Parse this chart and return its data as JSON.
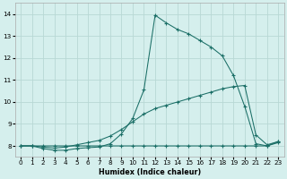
{
  "xlabel": "Humidex (Indice chaleur)",
  "background_color": "#d5efed",
  "grid_color": "#b8d8d5",
  "line_color": "#1a6e66",
  "xlim": [
    -0.5,
    23.5
  ],
  "ylim": [
    7.5,
    14.5
  ],
  "xticks": [
    0,
    1,
    2,
    3,
    4,
    5,
    6,
    7,
    8,
    9,
    10,
    11,
    12,
    13,
    14,
    15,
    16,
    17,
    18,
    19,
    20,
    21,
    22,
    23
  ],
  "yticks": [
    8,
    9,
    10,
    11,
    12,
    13,
    14
  ],
  "line1_x": [
    0,
    1,
    2,
    3,
    4,
    5,
    6,
    7,
    8,
    9,
    10,
    11,
    12,
    13,
    14,
    15,
    16,
    17,
    18,
    19,
    20,
    21,
    22,
    23
  ],
  "line1_y": [
    8.0,
    8.0,
    7.88,
    7.8,
    7.8,
    7.88,
    7.92,
    7.95,
    8.1,
    8.55,
    9.25,
    10.55,
    13.95,
    13.6,
    13.3,
    13.1,
    12.8,
    12.5,
    12.1,
    11.2,
    9.8,
    8.1,
    8.0,
    8.2
  ],
  "line2_x": [
    0,
    1,
    2,
    3,
    4,
    5,
    6,
    7,
    8,
    9,
    10,
    11,
    12,
    13,
    14,
    15,
    16,
    17,
    18,
    19,
    20,
    21,
    22,
    23
  ],
  "line2_y": [
    8.0,
    8.0,
    7.95,
    7.9,
    7.95,
    8.05,
    8.15,
    8.25,
    8.45,
    8.75,
    9.1,
    9.45,
    9.7,
    9.85,
    10.0,
    10.15,
    10.3,
    10.45,
    10.6,
    10.7,
    10.75,
    8.5,
    8.05,
    8.2
  ],
  "line3_x": [
    0,
    1,
    2,
    3,
    4,
    5,
    6,
    7,
    8,
    9,
    10,
    11,
    12,
    13,
    14,
    15,
    16,
    17,
    18,
    19,
    20,
    21,
    22,
    23
  ],
  "line3_y": [
    8.0,
    8.0,
    8.0,
    8.0,
    8.0,
    8.0,
    8.0,
    8.0,
    8.0,
    8.0,
    8.0,
    8.0,
    8.0,
    8.0,
    8.0,
    8.0,
    8.0,
    8.0,
    8.0,
    8.0,
    8.0,
    8.0,
    8.0,
    8.15
  ],
  "xlabel_fontsize": 5.8,
  "tick_fontsize": 5.2,
  "linewidth": 0.75,
  "markersize": 2.2,
  "markeredgewidth": 0.8
}
